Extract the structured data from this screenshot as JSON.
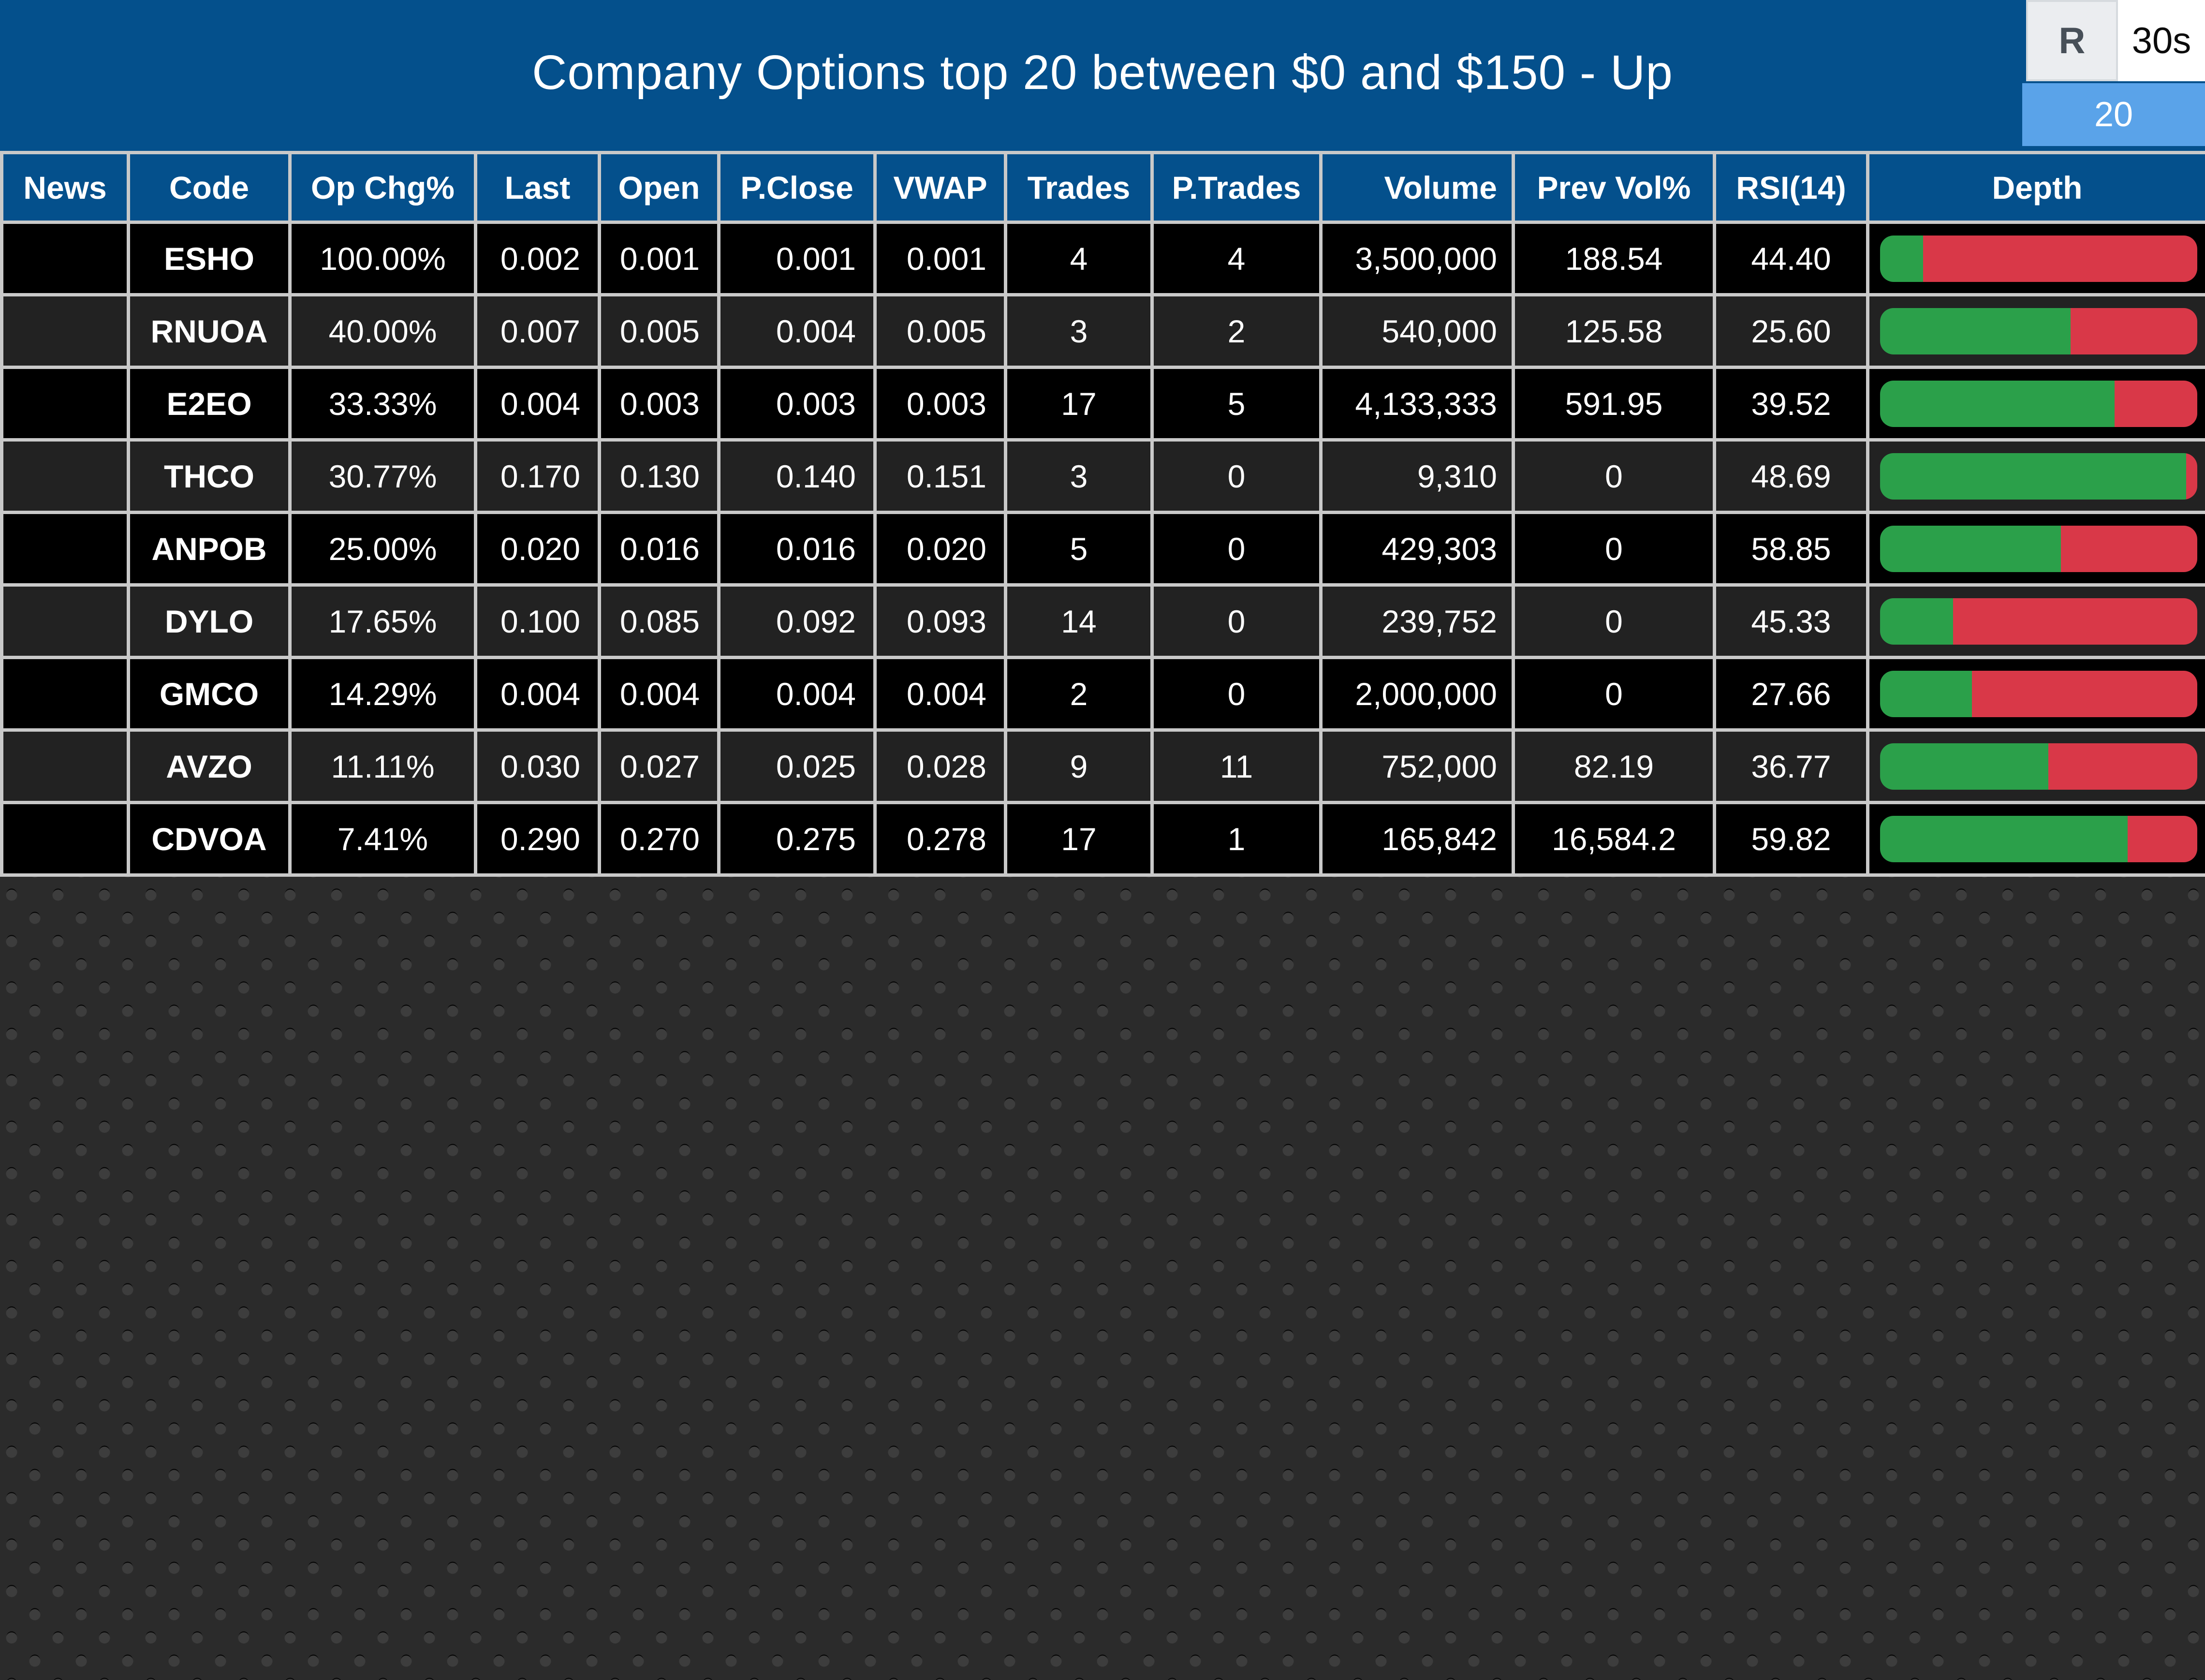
{
  "header": {
    "title": "Company Options top 20 between $0 and $150 - Up",
    "refresh_button": "R",
    "interval_button": "30s",
    "count_badge": "20"
  },
  "colors": {
    "title_bar_blue": "#04508c",
    "count_badge_blue": "#5aa3e9",
    "green_text": "#1fd322",
    "depth_bar_green": "#2ba04a",
    "depth_bar_red": "#d93848",
    "row_black": "#000000",
    "row_alt_gray": "#222222",
    "grid_border_gray": "#c9c9c9"
  },
  "table": {
    "columns": [
      "News",
      "Code",
      "Op Chg%",
      "Last",
      "Open",
      "P.Close",
      "VWAP",
      "Trades",
      "P.Trades",
      "Volume",
      "Prev Vol%",
      "RSI(14)",
      "Depth"
    ],
    "rows": [
      {
        "news": "",
        "code": "ESHO",
        "op_chg": "100.00%",
        "last": "0.002",
        "open": "0.001",
        "p_close": "0.001",
        "vwap": "0.001",
        "trades": "4",
        "trades_green": false,
        "p_trades": "4",
        "volume": "3,500,000",
        "prev_vol": "188.54",
        "prev_vol_green": true,
        "rsi": "44.40",
        "rsi_green": false,
        "depth_green_pct": 13.5
      },
      {
        "news": "",
        "code": "RNUOA",
        "op_chg": "40.00%",
        "last": "0.007",
        "open": "0.005",
        "p_close": "0.004",
        "vwap": "0.005",
        "trades": "3",
        "trades_green": true,
        "p_trades": "2",
        "volume": "540,000",
        "prev_vol": "125.58",
        "prev_vol_green": true,
        "rsi": "25.60",
        "rsi_green": true,
        "depth_green_pct": 60
      },
      {
        "news": "",
        "code": "E2EO",
        "op_chg": "33.33%",
        "last": "0.004",
        "open": "0.003",
        "p_close": "0.003",
        "vwap": "0.003",
        "trades": "17",
        "trades_green": true,
        "p_trades": "5",
        "volume": "4,133,333",
        "prev_vol": "591.95",
        "prev_vol_green": true,
        "rsi": "39.52",
        "rsi_green": false,
        "depth_green_pct": 74
      },
      {
        "news": "",
        "code": "THCO",
        "op_chg": "30.77%",
        "last": "0.170",
        "open": "0.130",
        "p_close": "0.140",
        "vwap": "0.151",
        "trades": "3",
        "trades_green": true,
        "p_trades": "0",
        "volume": "9,310",
        "prev_vol": "0",
        "prev_vol_green": false,
        "rsi": "48.69",
        "rsi_green": false,
        "depth_green_pct": 96.5
      },
      {
        "news": "",
        "code": "ANPOB",
        "op_chg": "25.00%",
        "last": "0.020",
        "open": "0.016",
        "p_close": "0.016",
        "vwap": "0.020",
        "trades": "5",
        "trades_green": true,
        "p_trades": "0",
        "volume": "429,303",
        "prev_vol": "0",
        "prev_vol_green": false,
        "rsi": "58.85",
        "rsi_green": false,
        "depth_green_pct": 57
      },
      {
        "news": "",
        "code": "DYLO",
        "op_chg": "17.65%",
        "last": "0.100",
        "open": "0.085",
        "p_close": "0.092",
        "vwap": "0.093",
        "trades": "14",
        "trades_green": true,
        "p_trades": "0",
        "volume": "239,752",
        "prev_vol": "0",
        "prev_vol_green": false,
        "rsi": "45.33",
        "rsi_green": false,
        "depth_green_pct": 23
      },
      {
        "news": "",
        "code": "GMCO",
        "op_chg": "14.29%",
        "last": "0.004",
        "open": "0.004",
        "p_close": "0.004",
        "vwap": "0.004",
        "trades": "2",
        "trades_green": true,
        "p_trades": "0",
        "volume": "2,000,000",
        "prev_vol": "0",
        "prev_vol_green": false,
        "rsi": "27.66",
        "rsi_green": true,
        "depth_green_pct": 29
      },
      {
        "news": "",
        "code": "AVZO",
        "op_chg": "11.11%",
        "last": "0.030",
        "open": "0.027",
        "p_close": "0.025",
        "vwap": "0.028",
        "trades": "9",
        "trades_green": false,
        "p_trades": "11",
        "volume": "752,000",
        "prev_vol": "82.19",
        "prev_vol_green": false,
        "rsi": "36.77",
        "rsi_green": false,
        "depth_green_pct": 53
      },
      {
        "news": "",
        "code": "CDVOA",
        "op_chg": "7.41%",
        "last": "0.290",
        "open": "0.270",
        "p_close": "0.275",
        "vwap": "0.278",
        "trades": "17",
        "trades_green": true,
        "p_trades": "1",
        "volume": "165,842",
        "prev_vol": "16,584.2",
        "prev_vol_green": true,
        "rsi": "59.82",
        "rsi_green": false,
        "depth_green_pct": 78
      }
    ]
  }
}
